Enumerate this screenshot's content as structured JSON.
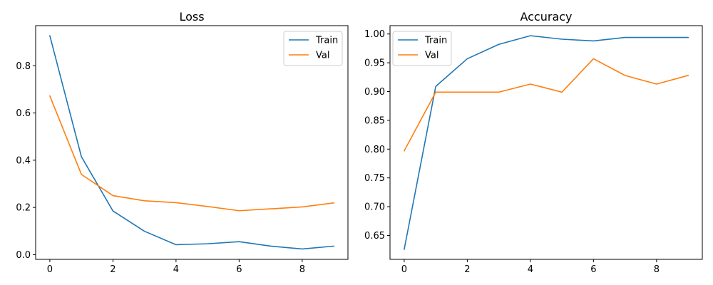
{
  "chart_data": [
    {
      "type": "line",
      "title": "Loss",
      "xlabel": "",
      "ylabel": "",
      "x": [
        0,
        1,
        2,
        3,
        4,
        5,
        6,
        7,
        8,
        9
      ],
      "xlim": [
        -0.45,
        9.45
      ],
      "ylim": [
        -0.02,
        0.97
      ],
      "xticks": [
        0,
        2,
        4,
        6,
        8
      ],
      "xtick_labels": [
        "0",
        "2",
        "4",
        "6",
        "8"
      ],
      "yticks": [
        0.0,
        0.2,
        0.4,
        0.6,
        0.8
      ],
      "ytick_labels": [
        "0.0",
        "0.2",
        "0.4",
        "0.6",
        "0.8"
      ],
      "grid": false,
      "legend_position": "top-right",
      "series": [
        {
          "name": "Train",
          "color": "#1f77b4",
          "values": [
            0.927,
            0.415,
            0.185,
            0.099,
            0.042,
            0.046,
            0.055,
            0.036,
            0.024,
            0.036
          ]
        },
        {
          "name": "Val",
          "color": "#ff7f0e",
          "values": [
            0.672,
            0.34,
            0.25,
            0.228,
            0.22,
            0.204,
            0.186,
            0.194,
            0.202,
            0.219
          ]
        }
      ]
    },
    {
      "type": "line",
      "title": "Accuracy",
      "xlabel": "",
      "ylabel": "",
      "x": [
        0,
        1,
        2,
        3,
        4,
        5,
        6,
        7,
        8,
        9
      ],
      "xlim": [
        -0.45,
        9.45
      ],
      "ylim": [
        0.6085,
        1.0145
      ],
      "xticks": [
        0,
        2,
        4,
        6,
        8
      ],
      "xtick_labels": [
        "0",
        "2",
        "4",
        "6",
        "8"
      ],
      "yticks": [
        0.65,
        0.7,
        0.75,
        0.8,
        0.85,
        0.9,
        0.95,
        1.0
      ],
      "ytick_labels": [
        "0.65",
        "0.70",
        "0.75",
        "0.80",
        "0.85",
        "0.90",
        "0.95",
        "1.00"
      ],
      "grid": false,
      "legend_position": "top-left",
      "series": [
        {
          "name": "Train",
          "color": "#1f77b4",
          "values": [
            0.626,
            0.909,
            0.957,
            0.982,
            0.997,
            0.991,
            0.988,
            0.994,
            0.994,
            0.994
          ]
        },
        {
          "name": "Val",
          "color": "#ff7f0e",
          "values": [
            0.797,
            0.899,
            0.899,
            0.899,
            0.913,
            0.899,
            0.957,
            0.928,
            0.913,
            0.928
          ]
        }
      ]
    }
  ]
}
